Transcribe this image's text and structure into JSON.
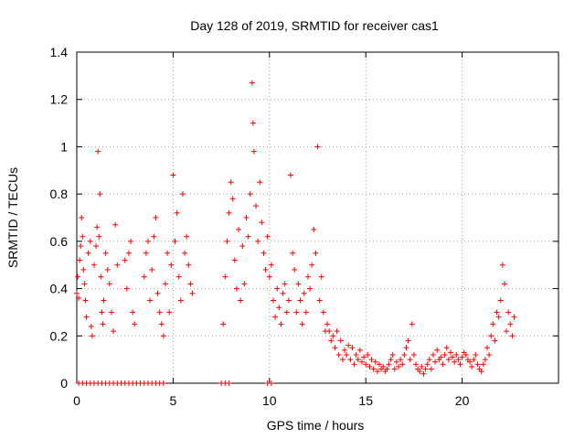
{
  "chart_data": {
    "type": "scatter",
    "title": "Day 128 of 2019, SRMTID for receiver cas1",
    "xlabel": "GPS time / hours",
    "ylabel": "SRMTID / TECUs",
    "xlim": [
      0,
      25
    ],
    "ylim": [
      0,
      1.4
    ],
    "xticks": [
      0,
      5,
      10,
      15,
      20
    ],
    "yticks": [
      0,
      0.2,
      0.4,
      0.6,
      0.8,
      1,
      1.2,
      1.4
    ],
    "xtick_labels": [
      "0",
      "5",
      "10",
      "15",
      "20"
    ],
    "ytick_labels": [
      "0",
      "0.2",
      "0.4",
      "0.6",
      "0.8",
      "1",
      "1.2",
      "1.4"
    ],
    "grid": true,
    "marker": "+",
    "color": "#ff0000",
    "series": [
      {
        "name": "SRMTID",
        "x": [
          0.0,
          0.05,
          0.1,
          0.15,
          0.2,
          0.25,
          0.3,
          0.35,
          0.4,
          0.45,
          0.5,
          0.6,
          0.7,
          0.75,
          0.8,
          0.9,
          1.0,
          1.05,
          1.1,
          1.15,
          1.2,
          1.25,
          1.3,
          1.35,
          1.4,
          1.5,
          1.6,
          1.7,
          1.8,
          1.9,
          2.0,
          2.1,
          2.5,
          2.6,
          2.7,
          2.8,
          2.9,
          3.0,
          3.5,
          3.6,
          3.7,
          3.8,
          3.9,
          4.0,
          4.1,
          4.2,
          4.3,
          4.4,
          4.5,
          4.6,
          4.7,
          4.8,
          4.9,
          5.0,
          5.1,
          5.2,
          5.3,
          5.4,
          5.5,
          5.6,
          5.7,
          5.8,
          5.9,
          6.0,
          7.6,
          7.7,
          7.8,
          7.9,
          8.0,
          8.1,
          8.2,
          8.3,
          8.4,
          8.5,
          8.6,
          8.7,
          8.8,
          8.9,
          9.0,
          9.1,
          9.15,
          9.2,
          9.3,
          9.4,
          9.5,
          9.6,
          9.7,
          9.8,
          9.9,
          10.0,
          10.1,
          10.2,
          10.3,
          10.4,
          10.5,
          10.6,
          10.7,
          10.8,
          10.9,
          11.0,
          11.1,
          11.2,
          11.3,
          11.4,
          11.5,
          11.6,
          11.7,
          11.8,
          11.9,
          12.0,
          12.1,
          12.2,
          12.3,
          12.4,
          12.5,
          12.6,
          12.7,
          12.8,
          12.9,
          13.0,
          13.1,
          13.2,
          13.3,
          13.4,
          13.5,
          13.6,
          13.7,
          13.8,
          13.9,
          14.0,
          14.1,
          14.2,
          14.3,
          14.4,
          14.5,
          14.6,
          14.7,
          14.8,
          14.9,
          15.0,
          15.1,
          15.2,
          15.3,
          15.4,
          15.5,
          15.6,
          15.7,
          15.8,
          15.9,
          16.0,
          16.1,
          16.2,
          16.3,
          16.4,
          16.5,
          16.6,
          16.7,
          16.8,
          16.9,
          17.0,
          17.1,
          17.2,
          17.3,
          17.4,
          17.5,
          17.6,
          17.7,
          17.8,
          17.9,
          18.0,
          18.1,
          18.2,
          18.3,
          18.4,
          18.5,
          18.6,
          18.7,
          18.8,
          18.9,
          19.0,
          19.1,
          19.2,
          19.3,
          19.4,
          19.5,
          19.6,
          19.7,
          19.8,
          19.9,
          20.0,
          20.1,
          20.2,
          20.3,
          20.4,
          20.5,
          20.6,
          20.7,
          20.8,
          20.9,
          21.0,
          21.1,
          21.2,
          21.3,
          21.4,
          21.5,
          21.6,
          21.7,
          21.8,
          21.9,
          22.0,
          22.1,
          22.2,
          22.3,
          22.4,
          22.5,
          22.6,
          22.7,
          0.1,
          0.3,
          0.5,
          0.7,
          0.9,
          1.1,
          1.3,
          1.5,
          1.7,
          1.9,
          2.1,
          2.3,
          2.5,
          2.7,
          2.9,
          3.1,
          3.3,
          3.5,
          3.7,
          3.9,
          4.1,
          4.3,
          4.5,
          7.5,
          7.7,
          7.9,
          9.9,
          10.1
        ],
        "y": [
          0.38,
          0.45,
          0.36,
          0.52,
          0.58,
          0.7,
          0.62,
          0.48,
          0.42,
          0.35,
          0.28,
          0.55,
          0.6,
          0.24,
          0.2,
          0.5,
          0.58,
          0.66,
          0.98,
          0.62,
          0.8,
          0.45,
          0.3,
          0.25,
          0.35,
          0.55,
          0.48,
          0.42,
          0.3,
          0.22,
          0.67,
          0.5,
          0.52,
          0.4,
          0.55,
          0.6,
          0.3,
          0.25,
          0.45,
          0.55,
          0.6,
          0.35,
          0.48,
          0.62,
          0.7,
          0.38,
          0.3,
          0.25,
          0.2,
          0.42,
          0.55,
          0.3,
          0.5,
          0.88,
          0.6,
          0.72,
          0.45,
          0.35,
          0.8,
          0.55,
          0.62,
          0.5,
          0.42,
          0.38,
          0.25,
          0.45,
          0.6,
          0.72,
          0.85,
          0.78,
          0.52,
          0.4,
          0.65,
          0.35,
          0.58,
          0.42,
          0.7,
          0.62,
          0.8,
          1.27,
          1.1,
          0.98,
          0.75,
          0.6,
          0.85,
          0.68,
          0.55,
          0.48,
          0.62,
          0.45,
          0.5,
          0.35,
          0.28,
          0.4,
          0.32,
          0.25,
          0.38,
          0.42,
          0.3,
          0.35,
          0.88,
          0.55,
          0.48,
          0.3,
          0.42,
          0.35,
          0.25,
          0.38,
          0.3,
          0.45,
          0.4,
          0.5,
          0.65,
          0.55,
          1.0,
          0.35,
          0.45,
          0.3,
          0.22,
          0.25,
          0.22,
          0.18,
          0.2,
          0.15,
          0.22,
          0.12,
          0.18,
          0.1,
          0.14,
          0.12,
          0.16,
          0.1,
          0.15,
          0.08,
          0.12,
          0.1,
          0.14,
          0.09,
          0.11,
          0.08,
          0.12,
          0.07,
          0.1,
          0.06,
          0.09,
          0.05,
          0.08,
          0.06,
          0.07,
          0.05,
          0.06,
          0.08,
          0.1,
          0.12,
          0.06,
          0.09,
          0.07,
          0.1,
          0.08,
          0.12,
          0.15,
          0.18,
          0.1,
          0.25,
          0.12,
          0.08,
          0.06,
          0.05,
          0.07,
          0.04,
          0.06,
          0.08,
          0.1,
          0.06,
          0.12,
          0.09,
          0.14,
          0.1,
          0.11,
          0.08,
          0.12,
          0.15,
          0.1,
          0.13,
          0.11,
          0.09,
          0.12,
          0.1,
          0.08,
          0.11,
          0.13,
          0.12,
          0.1,
          0.09,
          0.07,
          0.1,
          0.12,
          0.08,
          0.06,
          0.05,
          0.08,
          0.1,
          0.15,
          0.12,
          0.2,
          0.25,
          0.18,
          0.3,
          0.28,
          0.35,
          0.5,
          0.42,
          0.22,
          0.3,
          0.25,
          0.2,
          0.28,
          0,
          0,
          0,
          0,
          0,
          0,
          0,
          0,
          0,
          0,
          0,
          0,
          0,
          0,
          0,
          0,
          0,
          0,
          0,
          0,
          0,
          0,
          0,
          0,
          0,
          0,
          0,
          0
        ]
      }
    ]
  }
}
